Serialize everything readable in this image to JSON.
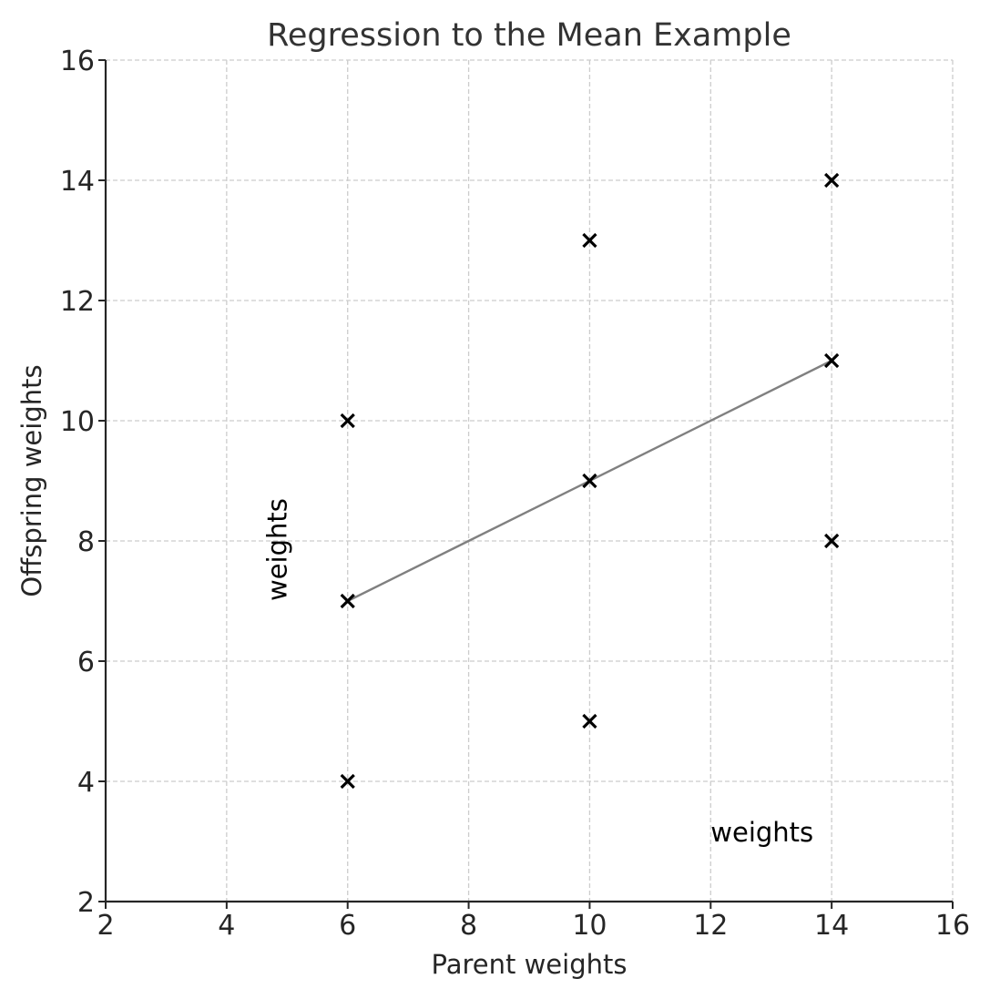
{
  "chart_data": {
    "type": "scatter",
    "title": "Regression to the Mean Example",
    "xlabel": "Parent weights",
    "ylabel": "Offspring weights",
    "xlim": [
      2,
      16
    ],
    "ylim": [
      2,
      16
    ],
    "xticks": [
      2,
      4,
      6,
      8,
      10,
      12,
      14,
      16
    ],
    "yticks": [
      2,
      4,
      6,
      8,
      10,
      12,
      14,
      16
    ],
    "grid": true,
    "marker": "x",
    "points": [
      {
        "x": 6,
        "y": 4
      },
      {
        "x": 6,
        "y": 7
      },
      {
        "x": 6,
        "y": 10
      },
      {
        "x": 10,
        "y": 5
      },
      {
        "x": 10,
        "y": 9
      },
      {
        "x": 10,
        "y": 13
      },
      {
        "x": 14,
        "y": 8
      },
      {
        "x": 14,
        "y": 11
      },
      {
        "x": 14,
        "y": 14
      }
    ],
    "regression_line": {
      "x": [
        6,
        14
      ],
      "y": [
        7,
        11
      ]
    },
    "annotations": [
      {
        "text": "weights",
        "x": 4.6,
        "y": 7,
        "rotation": -90
      },
      {
        "text": "weights",
        "x": 12,
        "y": 3
      }
    ],
    "colors": {
      "points": "#000000",
      "line": "#808080",
      "grid": "#cccccc",
      "axes": "#262626"
    }
  }
}
